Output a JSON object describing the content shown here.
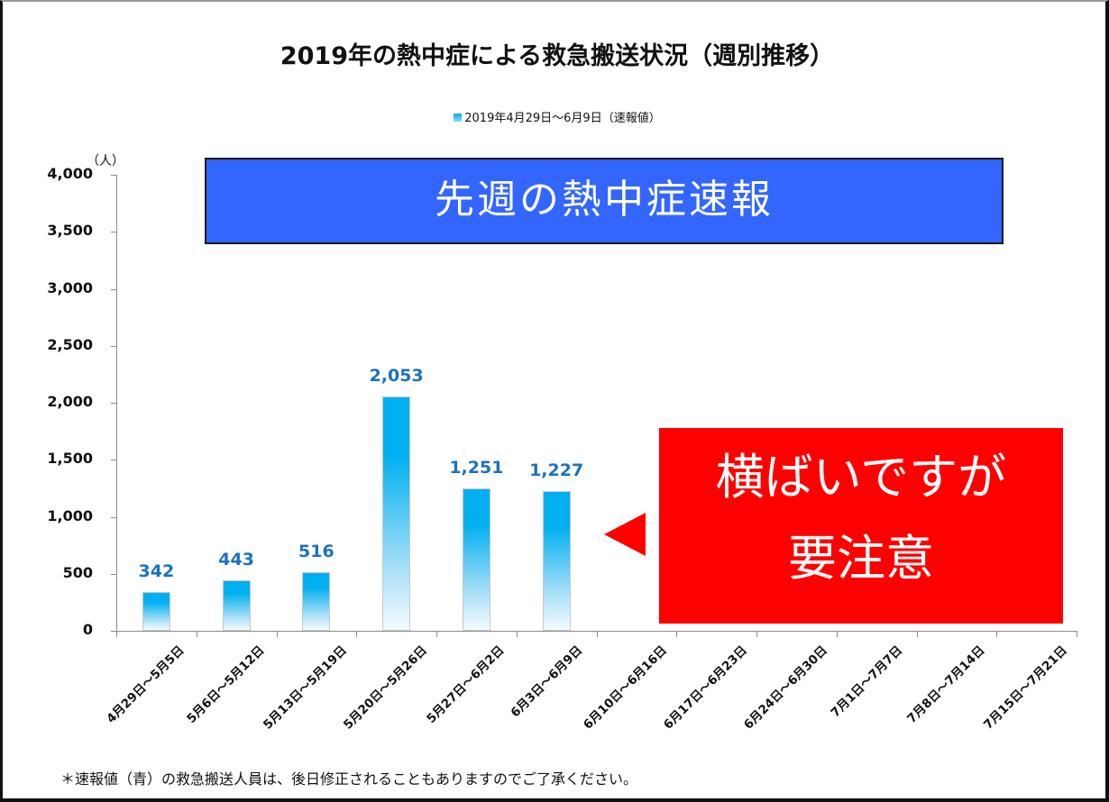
{
  "slide": {
    "title": "2019年の熱中症による救急搬送状況（週別推移）",
    "legend": "2019年4月29日～6月9日（速報値）",
    "unit": "（人）",
    "banner": "先週の熱中症速報",
    "callout": {
      "line1": "横ばいですが",
      "line2": "要注意"
    },
    "footnote": "＊速報値（青）の救急搬送人員は、後日修正されることもありますのでご了承ください。"
  },
  "colors": {
    "bar_top": "#00b0f0",
    "bar_label": "#1b72c0",
    "banner_bg": "#3366ff",
    "callout_bg": "#ff0000"
  },
  "chart_data": {
    "type": "bar",
    "title": "2019年の熱中症による救急搬送状況（週別推移）",
    "xlabel": "",
    "ylabel": "（人）",
    "ylim": [
      0,
      4000
    ],
    "yticks": [
      "0",
      "500",
      "1,000",
      "1,500",
      "2,000",
      "2,500",
      "3,000",
      "3,500",
      "4,000"
    ],
    "grid": false,
    "legend_position": "top",
    "categories": [
      "4月29日～5月5日",
      "5月6日～5月12日",
      "5月13日～5月19日",
      "5月20日～5月26日",
      "5月27日～6月2日",
      "6月3日～6月9日",
      "6月10日～6月16日",
      "6月17日～6月23日",
      "6月24日～6月30日",
      "7月1日～7月7日",
      "7月8日～7月14日",
      "7月15日～7月21日"
    ],
    "series": [
      {
        "name": "2019年4月29日～6月9日（速報値）",
        "values": [
          342,
          443,
          516,
          2053,
          1251,
          1227,
          null,
          null,
          null,
          null,
          null,
          null
        ],
        "labels": [
          "342",
          "443",
          "516",
          "2,053",
          "1,251",
          "1,227",
          "",
          "",
          "",
          "",
          "",
          ""
        ]
      }
    ],
    "annotations": [
      "先週の熱中症速報",
      "横ばいですが 要注意"
    ]
  }
}
